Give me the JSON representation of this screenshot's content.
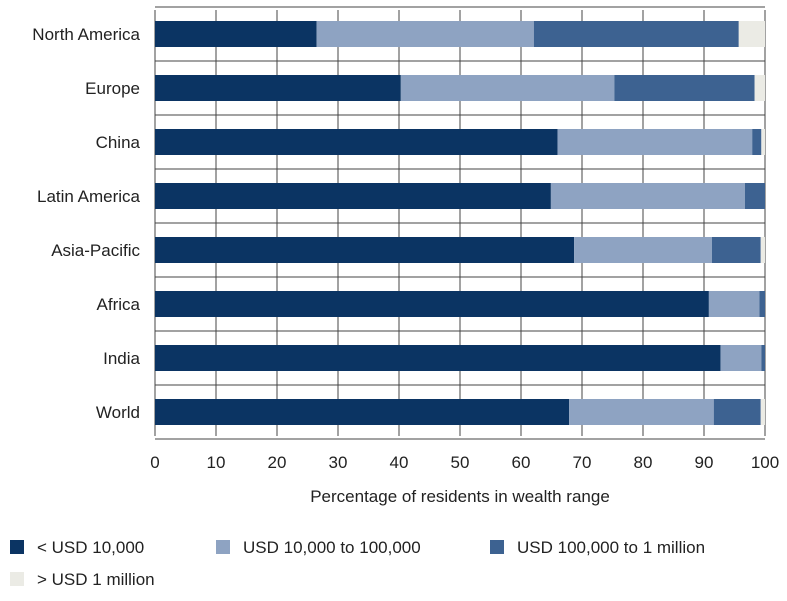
{
  "chart_data": {
    "type": "bar",
    "orientation": "horizontal",
    "stacked": true,
    "categories": [
      "North America",
      "Europe",
      "China",
      "Latin America",
      "Asia-Pacific",
      "Africa",
      "India",
      "World"
    ],
    "series": [
      {
        "name": "< USD 10,000",
        "color": "#0b3463",
        "values": [
          26.5,
          40.3,
          66.0,
          64.9,
          68.7,
          90.8,
          92.7,
          67.9
        ]
      },
      {
        "name": "USD 10,000 to 100,000",
        "color": "#8ea3c2",
        "values": [
          35.6,
          35.0,
          31.9,
          31.8,
          22.6,
          8.3,
          6.7,
          23.7
        ]
      },
      {
        "name": "USD 100,000 to 1 million",
        "color": "#3d6291",
        "values": [
          33.6,
          23.0,
          1.5,
          3.3,
          8.0,
          0.9,
          0.6,
          7.7
        ]
      },
      {
        "name": "> USD 1 million",
        "color": "#ebebe5",
        "values": [
          4.3,
          1.7,
          0.6,
          0.0,
          0.7,
          0.0,
          0.0,
          0.7
        ]
      }
    ],
    "xlabel": "Percentage of residents in wealth range",
    "ylabel": "",
    "xlim": [
      0,
      100
    ],
    "xticks": [
      0,
      10,
      20,
      30,
      40,
      50,
      60,
      70,
      80,
      90,
      100
    ],
    "grid": true,
    "legend_position": "bottom"
  }
}
